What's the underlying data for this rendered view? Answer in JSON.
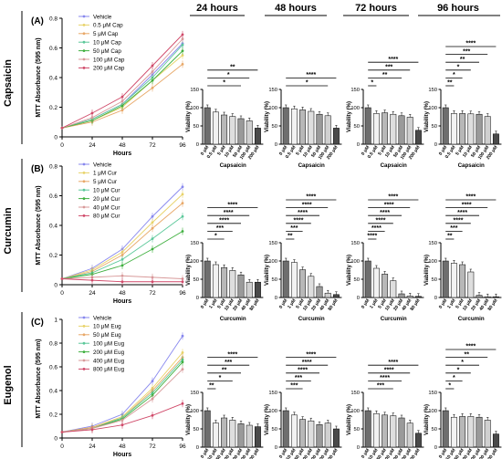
{
  "column_headers": [
    "24 hours",
    "48 hours",
    "72 hours",
    "96 hours"
  ],
  "colors": {
    "line_palette": [
      "#8888ee",
      "#e8d36a",
      "#e8a868",
      "#5cc89a",
      "#40b040",
      "#d89a9a",
      "#d04a6a"
    ],
    "bar_palette": [
      "#6e6e6e",
      "#f2f2f2",
      "#b8b8b8",
      "#dedede",
      "#9a9a9a",
      "#d0d0d0",
      "#4a4a4a"
    ],
    "axis": "#000000"
  },
  "rows": [
    {
      "panel": "(A)",
      "compound": "Capsaicin",
      "bar_xlabel": "Capsaicin",
      "legend": [
        "Vehicle",
        "0.5 μM Cap",
        "5 μM Cap",
        "10 μM Cap",
        "50 μM Cap",
        "100 μM Cap",
        "200 μM Cap"
      ],
      "bar_categories": [
        "0 μM",
        "0.5 μM",
        "5 μM",
        "10 μM",
        "50 μM",
        "100 μM",
        "200 μM"
      ],
      "sig": [
        [
          {
            "j": 6,
            "l": "**"
          },
          {
            "j": 5,
            "l": "*"
          },
          {
            "j": 4,
            "l": "*"
          }
        ],
        [
          {
            "j": 6,
            "l": "****"
          },
          {
            "j": 5,
            "l": "*"
          }
        ],
        [
          {
            "j": 6,
            "l": "****"
          },
          {
            "j": 5,
            "l": "***"
          },
          {
            "j": 4,
            "l": "**"
          },
          {
            "j": 1,
            "l": "*"
          }
        ],
        [
          {
            "j": 6,
            "l": "****"
          },
          {
            "j": 5,
            "l": "***"
          },
          {
            "j": 4,
            "l": "**"
          },
          {
            "j": 3,
            "l": "*"
          },
          {
            "j": 2,
            "l": "*"
          },
          {
            "j": 1,
            "l": "**"
          }
        ]
      ]
    },
    {
      "panel": "(B)",
      "compound": "Curcumin",
      "bar_xlabel": "Curcumin",
      "legend": [
        "Vehicle",
        "1 μM Cur",
        "5 μM Cur",
        "10 μM Cur",
        "20 μM Cur",
        "40 μM Cur",
        "80 μM Cur"
      ],
      "bar_categories": [
        "0 μM",
        "1 μM",
        "5 μM",
        "10 μM",
        "20 μM",
        "40 μM",
        "80 μM"
      ],
      "sig": [
        [
          {
            "j": 6,
            "l": "****"
          },
          {
            "j": 5,
            "l": "****"
          },
          {
            "j": 4,
            "l": "****"
          },
          {
            "j": 3,
            "l": "***"
          },
          {
            "j": 2,
            "l": "*"
          }
        ],
        [
          {
            "j": 6,
            "l": "****"
          },
          {
            "j": 5,
            "l": "****"
          },
          {
            "j": 4,
            "l": "****"
          },
          {
            "j": 3,
            "l": "****"
          },
          {
            "j": 2,
            "l": "***"
          },
          {
            "j": 1,
            "l": "**"
          }
        ],
        [
          {
            "j": 6,
            "l": "****"
          },
          {
            "j": 5,
            "l": "****"
          },
          {
            "j": 4,
            "l": "****"
          },
          {
            "j": 3,
            "l": "****"
          },
          {
            "j": 2,
            "l": "****"
          },
          {
            "j": 1,
            "l": "****"
          }
        ],
        [
          {
            "j": 6,
            "l": "****"
          },
          {
            "j": 5,
            "l": "****"
          },
          {
            "j": 4,
            "l": "****"
          },
          {
            "j": 3,
            "l": "****"
          },
          {
            "j": 2,
            "l": "***"
          },
          {
            "j": 1,
            "l": "**"
          }
        ]
      ]
    },
    {
      "panel": "(C)",
      "compound": "Eugenol",
      "bar_xlabel": "Eugenol",
      "legend": [
        "Vehicle",
        "10 μM Eug",
        "50 μM Eug",
        "100 μM Eug",
        "200 μM Eug",
        "400 μM Eug",
        "800 μM Eug"
      ],
      "bar_categories": [
        "0 μM",
        "10 μM",
        "50 μM",
        "100 μM",
        "200 μM",
        "400 μM",
        "800 μM"
      ],
      "sig": [
        [
          {
            "j": 6,
            "l": "****"
          },
          {
            "j": 5,
            "l": "***"
          },
          {
            "j": 4,
            "l": "**"
          },
          {
            "j": 3,
            "l": "*"
          },
          {
            "j": 1,
            "l": "**"
          }
        ],
        [
          {
            "j": 6,
            "l": "****"
          },
          {
            "j": 5,
            "l": "****"
          },
          {
            "j": 4,
            "l": "****"
          },
          {
            "j": 3,
            "l": "***"
          },
          {
            "j": 2,
            "l": "***"
          }
        ],
        [
          {
            "j": 6,
            "l": "****"
          },
          {
            "j": 5,
            "l": "****"
          },
          {
            "j": 4,
            "l": "****"
          },
          {
            "j": 3,
            "l": "***"
          }
        ],
        [
          {
            "j": 6,
            "l": "****"
          },
          {
            "j": 5,
            "l": "**"
          },
          {
            "j": 4,
            "l": "*"
          },
          {
            "j": 3,
            "l": "*"
          },
          {
            "j": 2,
            "l": "*"
          },
          {
            "j": 1,
            "l": "*"
          }
        ]
      ]
    }
  ],
  "chart_data": [
    {
      "type": "line",
      "panel": "(A)",
      "row_label": "Capsaicin",
      "xlabel": "Hours",
      "ylabel": "MTT Absorbance (595 nm)",
      "x": [
        0,
        24,
        48,
        72,
        96
      ],
      "xlim": [
        0,
        96
      ],
      "xticks": [
        0,
        24,
        48,
        72,
        96
      ],
      "ylim": [
        0.0,
        0.8
      ],
      "yticks": [
        0.0,
        0.2,
        0.4,
        0.6,
        0.8
      ],
      "series": [
        {
          "name": "Vehicle",
          "values": [
            0.06,
            0.12,
            0.22,
            0.42,
            0.63
          ]
        },
        {
          "name": "0.5 μM Cap",
          "values": [
            0.06,
            0.11,
            0.2,
            0.38,
            0.55
          ]
        },
        {
          "name": "5 μM Cap",
          "values": [
            0.06,
            0.1,
            0.18,
            0.33,
            0.49
          ]
        },
        {
          "name": "10 μM Cap",
          "values": [
            0.06,
            0.12,
            0.22,
            0.4,
            0.62
          ]
        },
        {
          "name": "50 μM Cap",
          "values": [
            0.06,
            0.11,
            0.21,
            0.38,
            0.58
          ]
        },
        {
          "name": "100 μM Cap",
          "values": [
            0.06,
            0.13,
            0.24,
            0.44,
            0.66
          ]
        },
        {
          "name": "200 μM Cap",
          "values": [
            0.06,
            0.16,
            0.27,
            0.48,
            0.69
          ]
        }
      ]
    },
    {
      "type": "bar",
      "panel": "(A)",
      "timepoint": "24 hours",
      "ylabel": "Viability (%)",
      "xlabel": "Capsaicin",
      "ylim": [
        0,
        150
      ],
      "yticks": [
        0,
        50,
        100,
        150
      ],
      "categories": [
        "0 μM",
        "0.5 μM",
        "5 μM",
        "10 μM",
        "50 μM",
        "100 μM",
        "200 μM"
      ],
      "values": [
        100,
        88,
        80,
        76,
        70,
        64,
        44
      ]
    },
    {
      "type": "bar",
      "panel": "(A)",
      "timepoint": "48 hours",
      "ylabel": "Viability (%)",
      "xlabel": "Capsaicin",
      "ylim": [
        0,
        150
      ],
      "yticks": [
        0,
        50,
        100,
        150
      ],
      "categories": [
        "0 μM",
        "0.5 μM",
        "5 μM",
        "10 μM",
        "50 μM",
        "100 μM",
        "200 μM"
      ],
      "values": [
        100,
        97,
        94,
        90,
        82,
        78,
        44
      ]
    },
    {
      "type": "bar",
      "panel": "(A)",
      "timepoint": "72 hours",
      "ylabel": "Viability (%)",
      "xlabel": "Capsaicin",
      "ylim": [
        0,
        150
      ],
      "yticks": [
        0,
        50,
        100,
        150
      ],
      "categories": [
        "0 μM",
        "0.5 μM",
        "5 μM",
        "10 μM",
        "50 μM",
        "100 μM",
        "200 μM"
      ],
      "values": [
        100,
        84,
        86,
        82,
        78,
        74,
        38
      ]
    },
    {
      "type": "bar",
      "panel": "(A)",
      "timepoint": "96 hours",
      "ylabel": "Viability (%)",
      "xlabel": "Capsaicin",
      "ylim": [
        0,
        150
      ],
      "yticks": [
        0,
        50,
        100,
        150
      ],
      "categories": [
        "0 μM",
        "0.5 μM",
        "5 μM",
        "10 μM",
        "50 μM",
        "100 μM",
        "200 μM"
      ],
      "values": [
        100,
        84,
        84,
        83,
        82,
        76,
        28
      ]
    },
    {
      "type": "line",
      "panel": "(B)",
      "row_label": "Curcumin",
      "xlabel": "Hours",
      "ylabel": "MTT Absorbance (595 nm)",
      "x": [
        0,
        24,
        48,
        72,
        96
      ],
      "xlim": [
        0,
        96
      ],
      "xticks": [
        0,
        24,
        48,
        72,
        96
      ],
      "ylim": [
        0.0,
        0.8
      ],
      "yticks": [
        0.0,
        0.2,
        0.4,
        0.6,
        0.8
      ],
      "series": [
        {
          "name": "Vehicle",
          "values": [
            0.04,
            0.11,
            0.24,
            0.46,
            0.66
          ]
        },
        {
          "name": "1 μM Cur",
          "values": [
            0.04,
            0.1,
            0.22,
            0.42,
            0.61
          ]
        },
        {
          "name": "5 μM Cur",
          "values": [
            0.04,
            0.09,
            0.2,
            0.38,
            0.55
          ]
        },
        {
          "name": "10 μM Cur",
          "values": [
            0.04,
            0.08,
            0.17,
            0.31,
            0.46
          ]
        },
        {
          "name": "20 μM Cur",
          "values": [
            0.04,
            0.07,
            0.13,
            0.24,
            0.36
          ]
        },
        {
          "name": "40 μM Cur",
          "values": [
            0.04,
            0.05,
            0.06,
            0.05,
            0.04
          ]
        },
        {
          "name": "80 μM Cur",
          "values": [
            0.04,
            0.03,
            0.02,
            0.02,
            0.02
          ]
        }
      ]
    },
    {
      "type": "bar",
      "panel": "(B)",
      "timepoint": "24 hours",
      "ylabel": "Viability (%)",
      "xlabel": "Curcumin",
      "ylim": [
        0,
        150
      ],
      "yticks": [
        0,
        50,
        100,
        150
      ],
      "categories": [
        "0 μM",
        "1 μM",
        "5 μM",
        "10 μM",
        "20 μM",
        "40 μM",
        "80 μM"
      ],
      "values": [
        100,
        90,
        82,
        74,
        62,
        42,
        42
      ]
    },
    {
      "type": "bar",
      "panel": "(B)",
      "timepoint": "48 hours",
      "ylabel": "Viability (%)",
      "xlabel": "Curcumin",
      "ylim": [
        0,
        150
      ],
      "yticks": [
        0,
        50,
        100,
        150
      ],
      "categories": [
        "0 μM",
        "1 μM",
        "5 μM",
        "10 μM",
        "20 μM",
        "40 μM",
        "80 μM"
      ],
      "values": [
        100,
        96,
        76,
        58,
        30,
        12,
        8
      ]
    },
    {
      "type": "bar",
      "panel": "(B)",
      "timepoint": "72 hours",
      "ylabel": "Viability (%)",
      "xlabel": "Curcumin",
      "ylim": [
        0,
        150
      ],
      "yticks": [
        0,
        50,
        100,
        150
      ],
      "categories": [
        "0 μM",
        "1 μM",
        "5 μM",
        "10 μM",
        "20 μM",
        "40 μM",
        "80 μM"
      ],
      "values": [
        100,
        80,
        64,
        46,
        10,
        4,
        3
      ]
    },
    {
      "type": "bar",
      "panel": "(B)",
      "timepoint": "96 hours",
      "ylabel": "Viability (%)",
      "xlabel": "Curcumin",
      "ylim": [
        0,
        150
      ],
      "yticks": [
        0,
        50,
        100,
        150
      ],
      "categories": [
        "0 μM",
        "1 μM",
        "5 μM",
        "10 μM",
        "20 μM",
        "40 μM",
        "80 μM"
      ],
      "values": [
        100,
        94,
        90,
        70,
        6,
        2,
        2
      ]
    },
    {
      "type": "line",
      "panel": "(C)",
      "row_label": "Eugenol",
      "xlabel": "Hours",
      "ylabel": "MTT Absorbance (595 nm)",
      "x": [
        0,
        24,
        48,
        72,
        96
      ],
      "xlim": [
        0,
        96
      ],
      "xticks": [
        0,
        24,
        48,
        72,
        96
      ],
      "ylim": [
        0.0,
        1.0
      ],
      "yticks": [
        0.0,
        0.2,
        0.4,
        0.6,
        0.8,
        1.0
      ],
      "series": [
        {
          "name": "Vehicle",
          "values": [
            0.05,
            0.1,
            0.2,
            0.48,
            0.86
          ]
        },
        {
          "name": "10 μM Eug",
          "values": [
            0.05,
            0.09,
            0.18,
            0.42,
            0.72
          ]
        },
        {
          "name": "50 μM Eug",
          "values": [
            0.05,
            0.09,
            0.17,
            0.4,
            0.68
          ]
        },
        {
          "name": "100 μM Eug",
          "values": [
            0.05,
            0.08,
            0.17,
            0.38,
            0.66
          ]
        },
        {
          "name": "200 μM Eug",
          "values": [
            0.05,
            0.08,
            0.16,
            0.36,
            0.64
          ]
        },
        {
          "name": "400 μM Eug",
          "values": [
            0.05,
            0.08,
            0.15,
            0.33,
            0.58
          ]
        },
        {
          "name": "800 μM Eug",
          "values": [
            0.05,
            0.07,
            0.11,
            0.19,
            0.29
          ]
        }
      ]
    },
    {
      "type": "bar",
      "panel": "(C)",
      "timepoint": "24 hours",
      "ylabel": "Viability (%)",
      "xlabel": "Eugenol",
      "ylim": [
        0,
        150
      ],
      "yticks": [
        0,
        50,
        100,
        150
      ],
      "categories": [
        "0 μM",
        "10 μM",
        "50 μM",
        "100 μM",
        "200 μM",
        "400 μM",
        "800 μM"
      ],
      "values": [
        100,
        66,
        80,
        74,
        64,
        60,
        56
      ]
    },
    {
      "type": "bar",
      "panel": "(C)",
      "timepoint": "48 hours",
      "ylabel": "Viability (%)",
      "xlabel": "Eugenol",
      "ylim": [
        0,
        150
      ],
      "yticks": [
        0,
        50,
        100,
        150
      ],
      "categories": [
        "0 μM",
        "10 μM",
        "50 μM",
        "100 μM",
        "200 μM",
        "400 μM",
        "800 μM"
      ],
      "values": [
        100,
        88,
        76,
        72,
        62,
        66,
        50
      ]
    },
    {
      "type": "bar",
      "panel": "(C)",
      "timepoint": "72 hours",
      "ylabel": "Viability (%)",
      "xlabel": "Eugenol",
      "ylim": [
        0,
        150
      ],
      "yticks": [
        0,
        50,
        100,
        150
      ],
      "categories": [
        "0 μM",
        "10 μM",
        "50 μM",
        "100 μM",
        "200 μM",
        "400 μM",
        "800 μM"
      ],
      "values": [
        100,
        92,
        88,
        86,
        80,
        66,
        38
      ]
    },
    {
      "type": "bar",
      "panel": "(C)",
      "timepoint": "96 hours",
      "ylabel": "Viability (%)",
      "xlabel": "Eugenol",
      "ylim": [
        0,
        150
      ],
      "yticks": [
        0,
        50,
        100,
        150
      ],
      "categories": [
        "0 μM",
        "10 μM",
        "50 μM",
        "100 μM",
        "200 μM",
        "400 μM",
        "800 μM"
      ],
      "values": [
        100,
        82,
        84,
        84,
        82,
        74,
        36
      ]
    }
  ]
}
